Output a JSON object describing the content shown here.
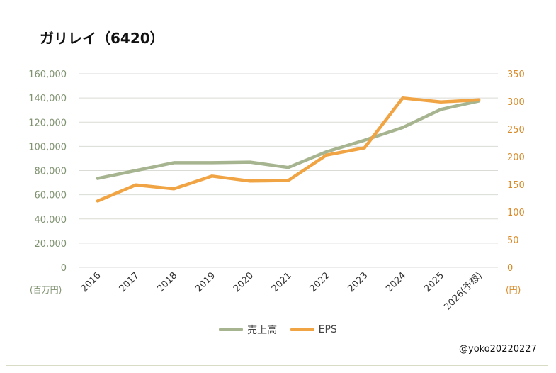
{
  "chart_data": {
    "type": "line",
    "title": "ガリレイ（6420）",
    "categories": [
      "2016",
      "2017",
      "2018",
      "2019",
      "2020",
      "2021",
      "2022",
      "2023",
      "2024",
      "2025",
      "2026(予想)"
    ],
    "series": [
      {
        "name": "売上高",
        "axis": "left",
        "color": "#a6b48f",
        "values": [
          73500,
          80000,
          86500,
          86500,
          87000,
          82500,
          95500,
          105000,
          115500,
          130500,
          137500
        ]
      },
      {
        "name": "EPS",
        "axis": "right",
        "color": "#f0a444",
        "values": [
          120,
          149,
          142,
          165,
          156,
          157,
          203,
          216,
          306,
          299,
          303
        ]
      }
    ],
    "y_left": {
      "min": 0,
      "max": 160000,
      "step": 20000,
      "ticks": [
        "0",
        "20,000",
        "40,000",
        "60,000",
        "80,000",
        "100,000",
        "120,000",
        "140,000",
        "160,000"
      ],
      "unit": "(百万円)",
      "color": "#7f9270"
    },
    "y_right": {
      "min": 0,
      "max": 350,
      "step": 50,
      "ticks": [
        "0",
        "50",
        "100",
        "150",
        "200",
        "250",
        "300",
        "350"
      ],
      "unit": "(円)",
      "color": "#d98a28"
    },
    "grid": true,
    "legend_position": "bottom"
  },
  "watermark": "@yoko20220227"
}
